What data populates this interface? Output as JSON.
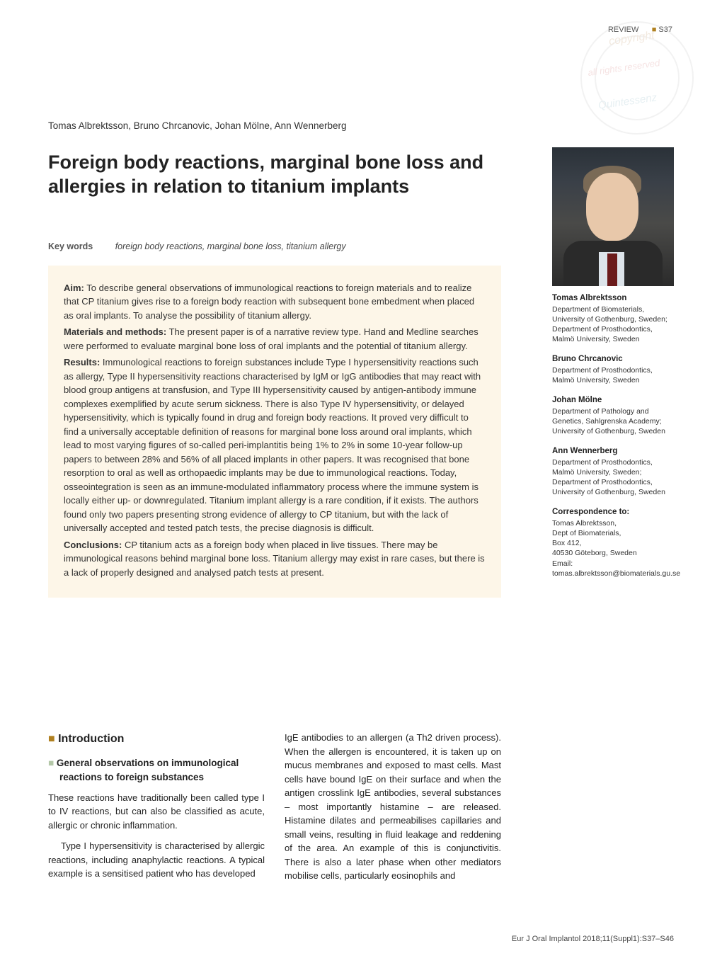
{
  "colors": {
    "box_bg": "#fdf6e8",
    "square_orange": "#b08020",
    "square_green": "#b3c7a7"
  },
  "header": {
    "section": "REVIEW",
    "page_number": "S37"
  },
  "watermark": {
    "line1": "copyright",
    "line2": "all rights reserved",
    "line3": "Quintessenz"
  },
  "authors_line": "Tomas Albrektsson, Bruno Chrcanovic, Johan Mölne, Ann Wennerberg",
  "title": "Foreign body reactions, marginal bone loss and allergies in relation to titanium implants",
  "keywords": {
    "label": "Key words",
    "text": "foreign body reactions, marginal bone loss, titanium allergy"
  },
  "abstract": [
    {
      "head": "Aim:",
      "body": " To describe general observations of immunological reactions to foreign materials and to realize that CP titanium gives rise to a foreign body reaction with subsequent bone embedment when placed as oral implants. To analyse the possibility of titanium allergy."
    },
    {
      "head": "Materials and methods:",
      "body": " The present paper is of a narrative review type. Hand and Medline searches were performed to evaluate marginal bone loss of oral implants and the potential of titanium allergy."
    },
    {
      "head": "Results:",
      "body": " Immunological reactions to foreign substances include Type I hypersensitivity reactions such as allergy, Type II hypersensitivity reactions characterised by IgM or IgG antibodies that may react with blood group antigens at transfusion, and Type III hypersensitivity caused by antigen-antibody immune complexes exemplified by acute serum sickness. There is also Type IV hypersensitivity, or delayed hypersensitivity, which is typically found in drug and foreign body reactions. It proved very difficult to find a universally acceptable definition of reasons for marginal bone loss around oral implants, which lead to most varying figures of so-called peri-implantitis being 1% to 2% in some 10-year follow-up papers to between 28% and 56% of all placed implants in other papers. It was recognised that bone resorption to oral as well as orthopaedic implants may be due to immunological reactions. Today, osseointegration is seen as an immune-modulated inflammatory process where the immune system is locally either up- or downregulated. Titanium implant allergy is a rare condition, if it exists. The authors found only two papers presenting strong evidence of allergy to CP titanium, but with the lack of universally accepted and tested patch tests, the precise diagnosis is difficult."
    },
    {
      "head": "Conclusions:",
      "body": " CP titanium acts as a foreign body when placed in live tissues. There may be immunological reasons behind marginal bone loss. Titanium allergy may exist in rare cases, but there is a lack of properly designed and analysed patch tests at present."
    }
  ],
  "body": {
    "h2": "Introduction",
    "h3": "General observations on immunological reactions to foreign substances",
    "left_p1": "These reactions have traditionally been called type I to IV reactions, but can also be classified as acute, allergic or chronic inflammation.",
    "left_p2": "Type I hypersensitivity is characterised by allergic reactions, including anaphylactic reactions. A typical example is a sensitised patient who has developed",
    "right_p1": "IgE antibodies to an allergen (a Th2 driven process). When the allergen is encountered, it is taken up on mucus membranes and exposed to mast cells. Mast cells have bound IgE on their surface and when the antigen crosslink IgE antibodies, several substances – most importantly histamine – are released. Histamine dilates and permeabilises capillaries and small veins, resulting in fluid leakage and reddening of the area. An example of this is conjunctivitis. There is also a later phase when other mediators mobilise cells, particularly eosinophils and"
  },
  "sidebar": [
    {
      "name": "Tomas Albrektsson",
      "aff": "Department of Biomaterials, University of Gothenburg, Sweden; Department of Prosthodontics, Malmö University, Sweden"
    },
    {
      "name": "Bruno Chrcanovic",
      "aff": "Department of Prosthodontics, Malmö University, Sweden"
    },
    {
      "name": "Johan Mölne",
      "aff": "Department of Pathology and Genetics, Sahlgrenska Academy; University of Gothenburg, Sweden"
    },
    {
      "name": "Ann Wennerberg",
      "aff": "Department of Prosthodontics, Malmö University, Sweden; Department of Prosthodontics, University of Gothenburg, Sweden"
    }
  ],
  "correspondence": {
    "label": "Correspondence to:",
    "text": "Tomas Albrektsson,\nDept of Biomaterials,\nBox 412,\n40530 Göteborg, Sweden\nEmail: tomas.albrektsson@biomaterials.gu.se"
  },
  "footer_citation": "Eur J Oral Implantol 2018;11(Suppl1):S37–S46"
}
